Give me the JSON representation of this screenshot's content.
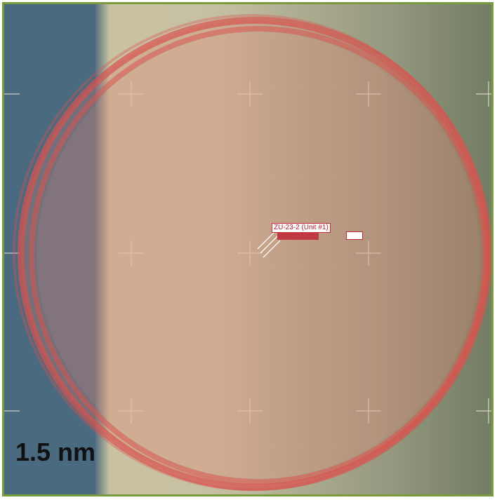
{
  "map": {
    "unit_label": "ZU-23-2 (Unit #1)",
    "scale_label": "1.5 nm",
    "colors": {
      "range_ring": "#d9534f",
      "frame_border": "#7a9a3e",
      "water": "#4a6a80",
      "grid_cross": "#e8e8e0"
    }
  }
}
